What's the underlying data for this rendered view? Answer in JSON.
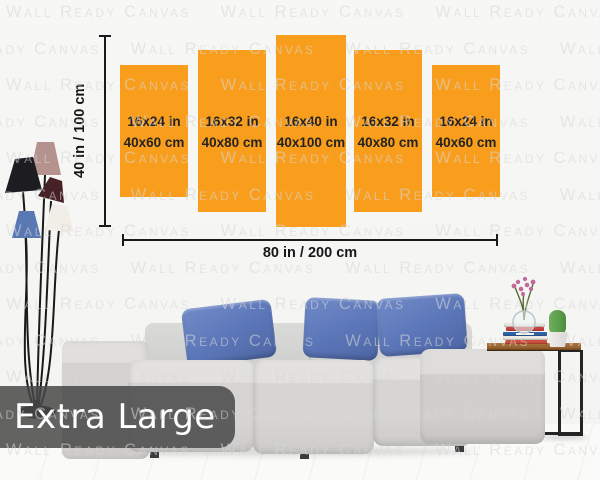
{
  "size_label": "Extra Large",
  "watermark": {
    "text": "Wall Ready Canvas"
  },
  "diagram": {
    "height_label": "40 in / 100 cm",
    "width_label": "80 in / 200 cm",
    "panels": [
      {
        "inches": "16x24 in",
        "cm": "40x60 cm"
      },
      {
        "inches": "16x32 in",
        "cm": "40x80 cm"
      },
      {
        "inches": "16x40 in",
        "cm": "40x100 cm"
      },
      {
        "inches": "16x32 in",
        "cm": "40x80 cm"
      },
      {
        "inches": "16x24 in",
        "cm": "40x60 cm"
      }
    ]
  },
  "scene": {
    "book_colors": [
      "#cf4f3e",
      "#eeeae2",
      "#2e63a8",
      "#c8413a",
      "#e9e6df"
    ]
  },
  "colors": {
    "panel": "#F99D1C",
    "wall": "#f6f6f4",
    "floor": "#fafaf8",
    "line": "#1a1a1a",
    "watermark": "#d8d8d8",
    "banner": "rgba(72,72,72,0.85)",
    "pillow": "#5b76b8",
    "wood": "#96602f",
    "metal": "#242424",
    "cactus": "#5a9e4b",
    "flower": "#c06a9a",
    "shade_black": "#1d1d21",
    "shade_mauve": "#b4928e",
    "shade_maroon": "#462125",
    "shade_white": "#f1eee8",
    "shade_blue": "#5a78b4"
  }
}
